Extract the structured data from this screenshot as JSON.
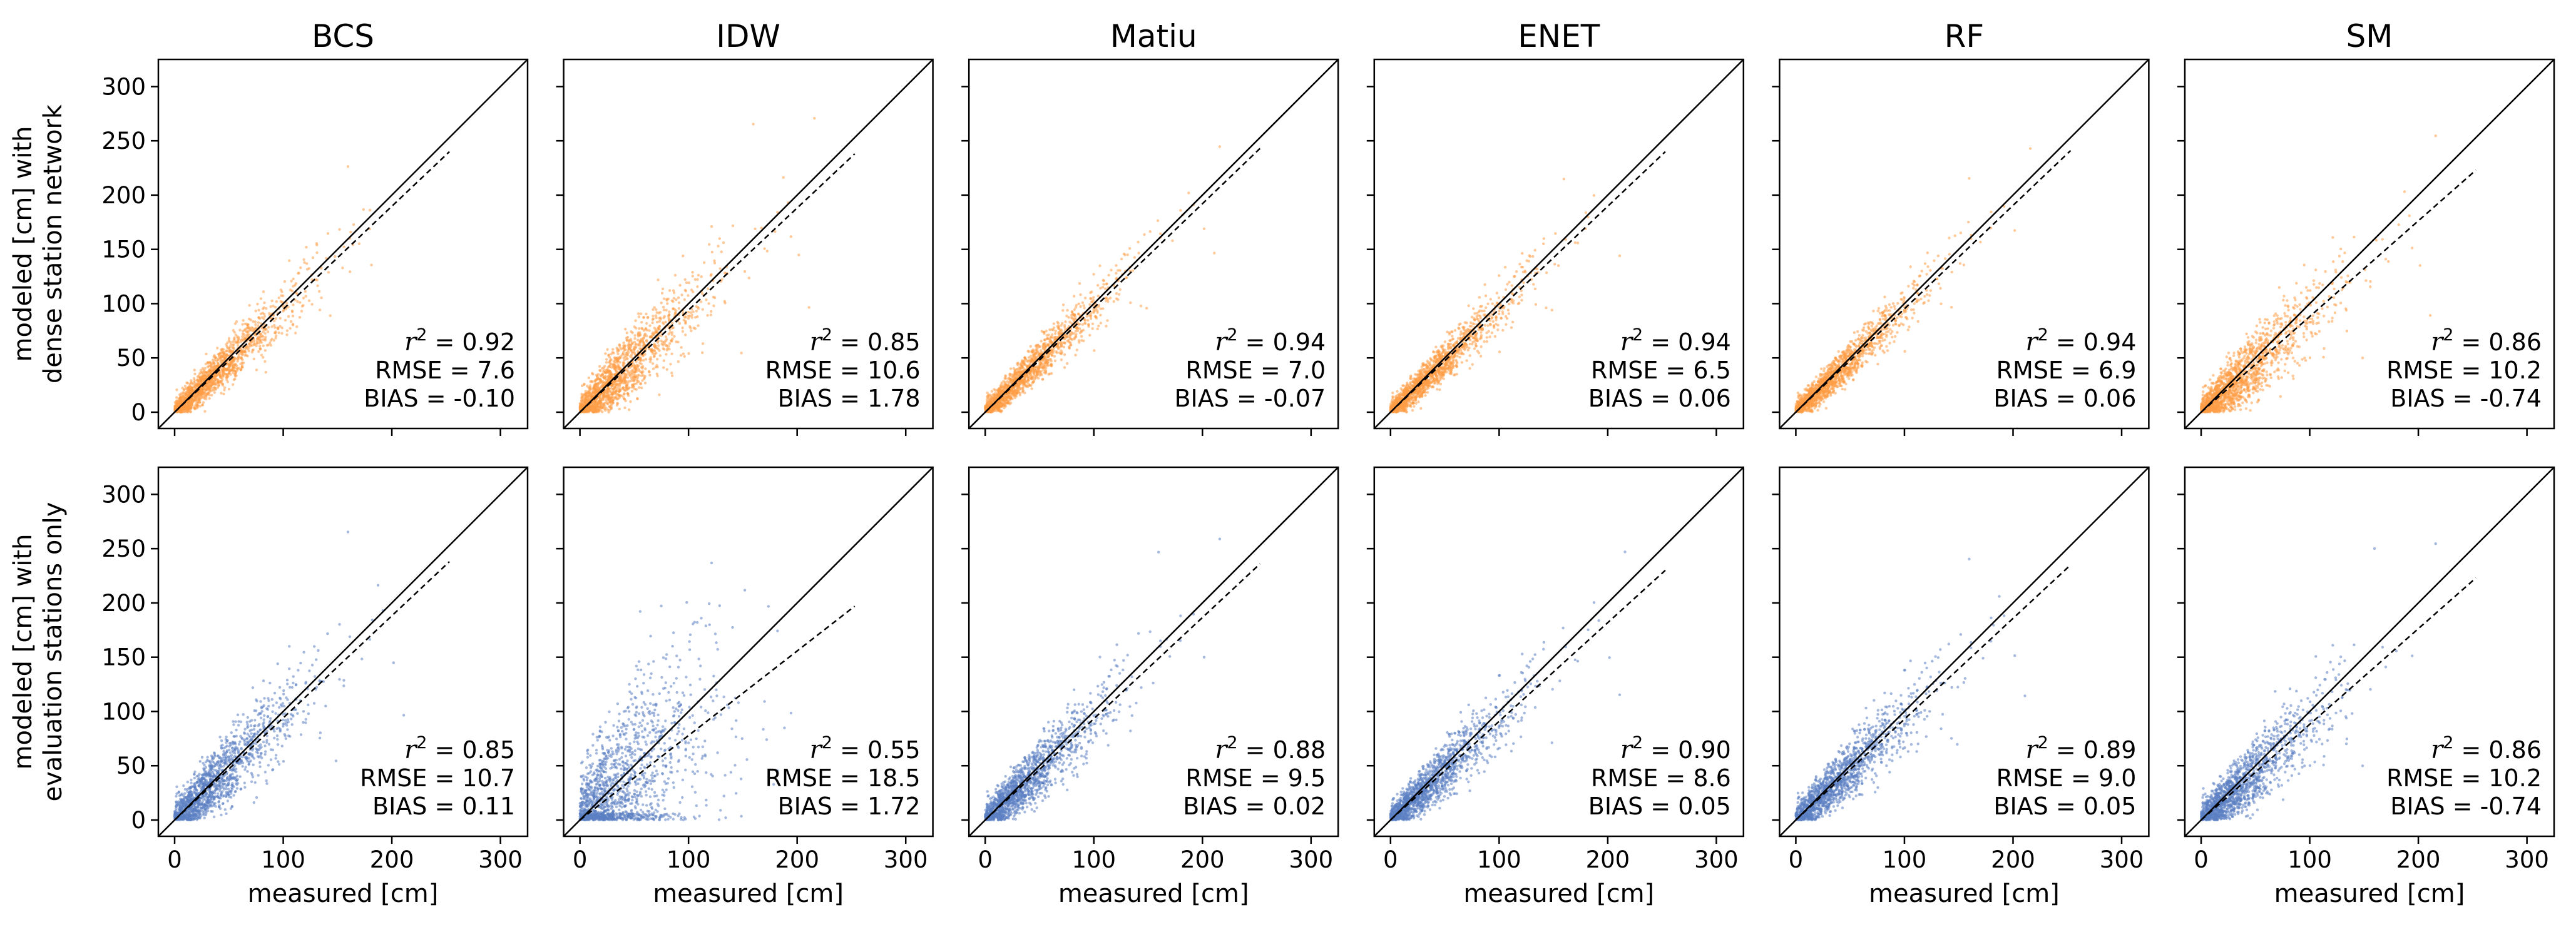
{
  "chart_data": {
    "type": "scatter",
    "models": [
      "BCS",
      "IDW",
      "Matiu",
      "ENET",
      "RF",
      "SM"
    ],
    "rows": [
      {
        "ylabel": [
          "modeled [cm] with",
          "dense station network"
        ],
        "color": "#ff9d45",
        "panels": [
          {
            "r2": "0.92",
            "rmse": "7.6",
            "bias": "-0.10",
            "fit_end_x": 253,
            "fit_end_y": 240
          },
          {
            "r2": "0.85",
            "rmse": "10.6",
            "bias": "1.78",
            "fit_end_x": 253,
            "fit_end_y": 238
          },
          {
            "r2": "0.94",
            "rmse": "7.0",
            "bias": "-0.07",
            "fit_end_x": 253,
            "fit_end_y": 243
          },
          {
            "r2": "0.94",
            "rmse": "6.5",
            "bias": "0.06",
            "fit_end_x": 253,
            "fit_end_y": 240
          },
          {
            "r2": "0.94",
            "rmse": "6.9",
            "bias": "0.06",
            "fit_end_x": 253,
            "fit_end_y": 241
          },
          {
            "r2": "0.86",
            "rmse": "10.2",
            "bias": "-0.74",
            "fit_end_x": 253,
            "fit_end_y": 223
          }
        ]
      },
      {
        "ylabel": [
          "modeled [cm] with",
          "evaluation stations only"
        ],
        "color": "#5b7fc2",
        "panels": [
          {
            "r2": "0.85",
            "rmse": "10.7",
            "bias": "0.11",
            "fit_end_x": 253,
            "fit_end_y": 238
          },
          {
            "r2": "0.55",
            "rmse": "18.5",
            "bias": "1.72",
            "fit_end_x": 253,
            "fit_end_y": 197
          },
          {
            "r2": "0.88",
            "rmse": "9.5",
            "bias": "0.02",
            "fit_end_x": 253,
            "fit_end_y": 236
          },
          {
            "r2": "0.90",
            "rmse": "8.6",
            "bias": "0.05",
            "fit_end_x": 253,
            "fit_end_y": 230
          },
          {
            "r2": "0.89",
            "rmse": "9.0",
            "bias": "0.05",
            "fit_end_x": 253,
            "fit_end_y": 235
          },
          {
            "r2": "0.86",
            "rmse": "10.2",
            "bias": "-0.74",
            "fit_end_x": 253,
            "fit_end_y": 223
          }
        ]
      }
    ],
    "xlabel": "measured [cm]",
    "xlim": [
      -15,
      325
    ],
    "ylim": [
      -15,
      325
    ],
    "xticks": [
      0,
      100,
      200,
      300
    ],
    "yticks": [
      0,
      50,
      100,
      150,
      200,
      250,
      300
    ],
    "stat_labels": {
      "r2_symbol": "r",
      "r2_power": "2",
      "rmse": "RMSE",
      "bias": "BIAS"
    },
    "reference_line": "1:1",
    "fit_line": "dashed"
  }
}
